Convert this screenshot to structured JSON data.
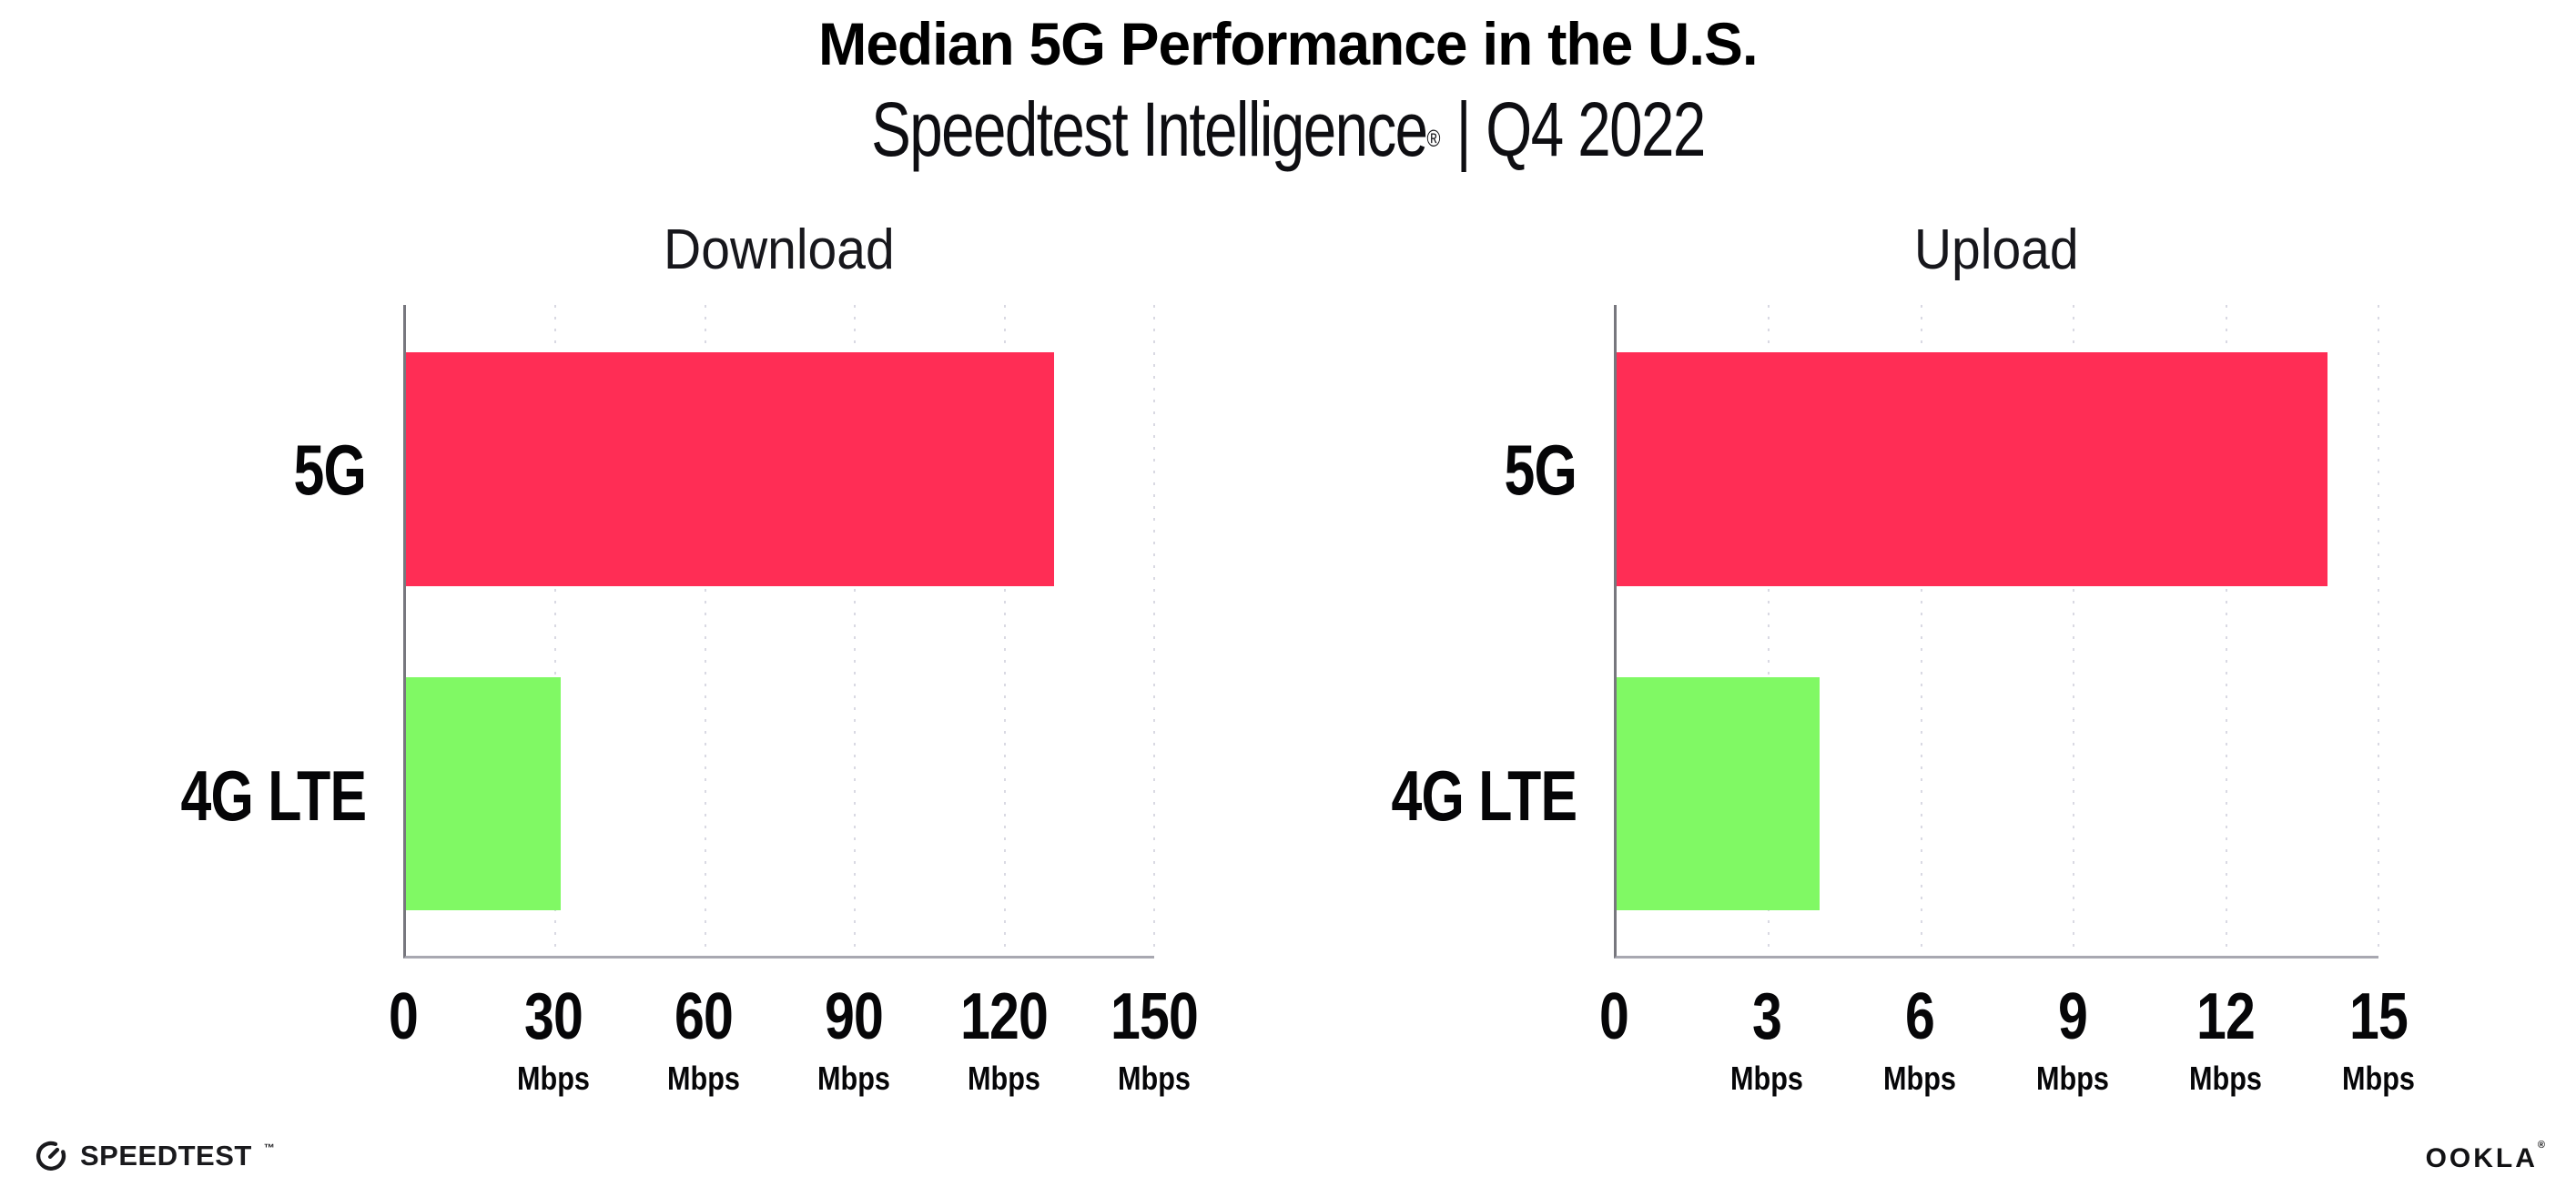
{
  "header": {
    "title": "Median 5G Performance in the U.S.",
    "subtitle_brand": "Speedtest Intelligence",
    "subtitle_registered": "®",
    "subtitle_divider": "|",
    "subtitle_period": "Q4 2022"
  },
  "colors": {
    "bar_5g": "#FF2D55",
    "bar_4g_lte": "#80F964",
    "gridline": "#D9D9E3",
    "x_axis_line": "#A8A8B1",
    "y_axis_line": "#77777E",
    "text": "#0B0B0E",
    "background": "#FFFFFF"
  },
  "chart_data": [
    {
      "type": "bar",
      "orientation": "horizontal",
      "title": "Download",
      "categories": [
        "5G",
        "4G LTE"
      ],
      "values": [
        130,
        31
      ],
      "unit": "Mbps",
      "xlim": [
        0,
        150
      ],
      "xticks": [
        0,
        30,
        60,
        90,
        120,
        150
      ],
      "bar_colors": [
        "#FF2D55",
        "#80F964"
      ],
      "grid": "vertical-dotted",
      "legend": "none"
    },
    {
      "type": "bar",
      "orientation": "horizontal",
      "title": "Upload",
      "categories": [
        "5G",
        "4G LTE"
      ],
      "values": [
        14,
        4
      ],
      "unit": "Mbps",
      "xlim": [
        0,
        15
      ],
      "xticks": [
        0,
        3,
        6,
        9,
        12,
        15
      ],
      "bar_colors": [
        "#FF2D55",
        "#80F964"
      ],
      "grid": "vertical-dotted",
      "legend": "none"
    }
  ],
  "footer": {
    "speedtest": {
      "label": "SPEEDTEST",
      "trademark": "™"
    },
    "ookla": {
      "label": "OOKLA",
      "trademark": "®"
    }
  }
}
